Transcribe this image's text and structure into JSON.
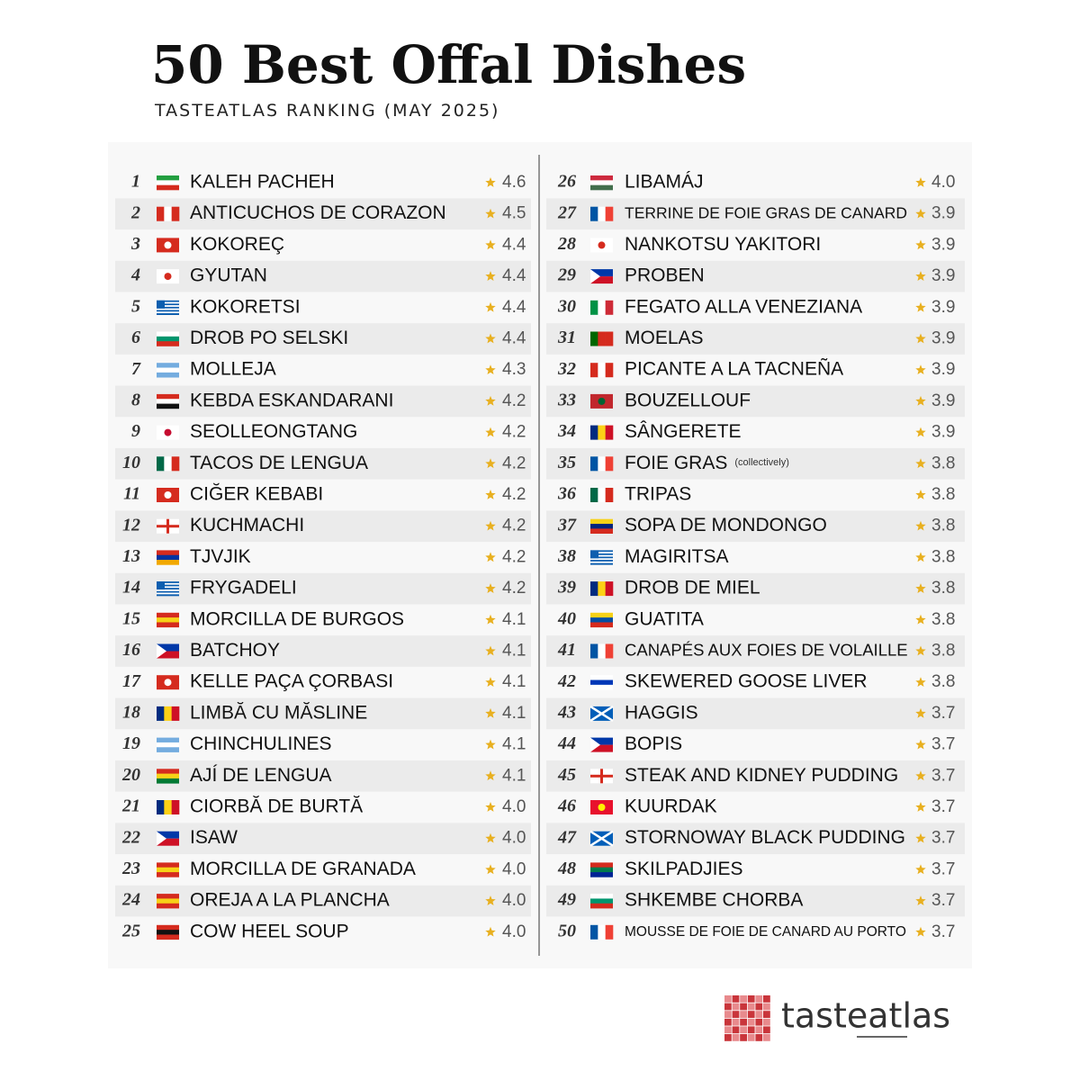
{
  "header": {
    "title": "50 Best Offal Dishes",
    "subtitle": "TASTEATLAS RANKING (MAY 2025)"
  },
  "rows": [
    {
      "rank": 1,
      "name": "KALEH PACHEH",
      "rating": "4.6"
    },
    {
      "rank": 2,
      "name": "ANTICUCHOS DE CORAZON",
      "rating": "4.5"
    },
    {
      "rank": 3,
      "name": "KOKOREÇ",
      "rating": "4.4"
    },
    {
      "rank": 4,
      "name": "GYUTAN",
      "rating": "4.4"
    },
    {
      "rank": 5,
      "name": "KOKORETSI",
      "rating": "4.4"
    },
    {
      "rank": 6,
      "name": "DROB PO SELSKI",
      "rating": "4.4"
    },
    {
      "rank": 7,
      "name": "MOLLEJA",
      "rating": "4.3"
    },
    {
      "rank": 8,
      "name": "KEBDA ESKANDARANI",
      "rating": "4.2"
    },
    {
      "rank": 9,
      "name": "SEOLLEONGTANG",
      "rating": "4.2"
    },
    {
      "rank": 10,
      "name": "TACOS DE LENGUA",
      "rating": "4.2"
    },
    {
      "rank": 11,
      "name": "CIĞER KEBABI",
      "rating": "4.2"
    },
    {
      "rank": 12,
      "name": "KUCHMACHI",
      "rating": "4.2"
    },
    {
      "rank": 13,
      "name": "TJVJIK",
      "rating": "4.2"
    },
    {
      "rank": 14,
      "name": "FRYGADELI",
      "rating": "4.2"
    },
    {
      "rank": 15,
      "name": "MORCILLA DE BURGOS",
      "rating": "4.1"
    },
    {
      "rank": 16,
      "name": "BATCHOY",
      "rating": "4.1"
    },
    {
      "rank": 17,
      "name": "KELLE PAÇA ÇORBASI",
      "rating": "4.1"
    },
    {
      "rank": 18,
      "name": "LIMBĂ CU MĂSLINE",
      "rating": "4.1"
    },
    {
      "rank": 19,
      "name": "CHINCHULINES",
      "rating": "4.1"
    },
    {
      "rank": 20,
      "name": "AJÍ DE LENGUA",
      "rating": "4.1"
    },
    {
      "rank": 21,
      "name": "CIORBĂ DE BURTĂ",
      "rating": "4.0"
    },
    {
      "rank": 22,
      "name": "ISAW",
      "rating": "4.0"
    },
    {
      "rank": 23,
      "name": "MORCILLA DE GRANADA",
      "rating": "4.0"
    },
    {
      "rank": 24,
      "name": "OREJA A LA PLANCHA",
      "rating": "4.0"
    },
    {
      "rank": 25,
      "name": "COW HEEL SOUP",
      "rating": "4.0"
    },
    {
      "rank": 26,
      "name": "LIBAMÁJ",
      "rating": "4.0"
    },
    {
      "rank": 27,
      "name": "TERRINE DE FOIE GRAS DE CANARD",
      "rating": "3.9"
    },
    {
      "rank": 28,
      "name": "NANKOTSU YAKITORI",
      "rating": "3.9"
    },
    {
      "rank": 29,
      "name": "PROBEN",
      "rating": "3.9"
    },
    {
      "rank": 30,
      "name": "FEGATO ALLA VENEZIANA",
      "rating": "3.9"
    },
    {
      "rank": 31,
      "name": "MOELAS",
      "rating": "3.9"
    },
    {
      "rank": 32,
      "name": "PICANTE A LA TACNEÑA",
      "rating": "3.9"
    },
    {
      "rank": 33,
      "name": "BOUZELLOUF",
      "rating": "3.9"
    },
    {
      "rank": 34,
      "name": "SÂNGERETE",
      "rating": "3.9"
    },
    {
      "rank": 35,
      "name": "FOIE GRAS",
      "note": "(collectively)",
      "rating": "3.8"
    },
    {
      "rank": 36,
      "name": "TRIPAS",
      "rating": "3.8"
    },
    {
      "rank": 37,
      "name": "SOPA DE MONDONGO",
      "rating": "3.8"
    },
    {
      "rank": 38,
      "name": "MAGIRITSA",
      "rating": "3.8"
    },
    {
      "rank": 39,
      "name": "DROB DE MIEL",
      "rating": "3.8"
    },
    {
      "rank": 40,
      "name": "GUATITA",
      "rating": "3.8"
    },
    {
      "rank": 41,
      "name": "CANAPÉS AUX FOIES DE VOLAILLE",
      "rating": "3.8"
    },
    {
      "rank": 42,
      "name": "SKEWERED GOOSE LIVER",
      "rating": "3.8"
    },
    {
      "rank": 43,
      "name": "HAGGIS",
      "rating": "3.7"
    },
    {
      "rank": 44,
      "name": "BOPIS",
      "rating": "3.7"
    },
    {
      "rank": 45,
      "name": "STEAK AND KIDNEY PUDDING",
      "rating": "3.7"
    },
    {
      "rank": 46,
      "name": "KUURDAK",
      "rating": "3.7"
    },
    {
      "rank": 47,
      "name": "STORNOWAY BLACK PUDDING",
      "rating": "3.7"
    },
    {
      "rank": 48,
      "name": "SKILPADJIES",
      "rating": "3.7"
    },
    {
      "rank": 49,
      "name": "SHKEMBE CHORBA",
      "rating": "3.7"
    },
    {
      "rank": 50,
      "name": "MOUSSE DE FOIE DE CANARD AU PORTO",
      "rating": "3.7"
    }
  ],
  "logo": "tasteatlas"
}
